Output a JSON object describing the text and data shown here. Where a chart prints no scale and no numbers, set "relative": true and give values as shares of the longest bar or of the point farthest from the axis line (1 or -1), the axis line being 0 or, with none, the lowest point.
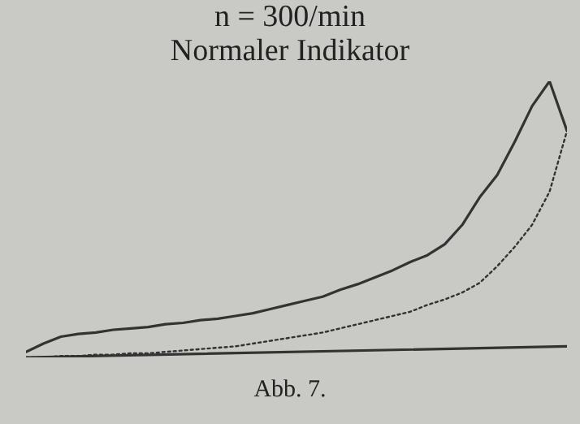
{
  "chart_data": {
    "type": "line",
    "title": "n = 300/min",
    "subtitle": "Normaler Indikator",
    "annotations": [
      "Abb. 7."
    ],
    "relative": true,
    "legend": false,
    "grid": false,
    "marker": "none",
    "categories": [
      null,
      null,
      null,
      null,
      null,
      null,
      null,
      null,
      null,
      null,
      null,
      null,
      null,
      null,
      null,
      null,
      null,
      null,
      null,
      null,
      null,
      null,
      null,
      null,
      null,
      null,
      null,
      null,
      null,
      null,
      null,
      null
    ],
    "series": [
      {
        "color": "#333333",
        "line_style": "solid",
        "values": [
          0.02,
          0.05,
          0.075,
          0.085,
          0.09,
          0.1,
          0.105,
          0.11,
          0.12,
          0.125,
          0.135,
          0.14,
          0.15,
          0.16,
          0.175,
          0.19,
          0.205,
          0.22,
          0.245,
          0.265,
          0.29,
          0.315,
          0.345,
          0.37,
          0.41,
          0.48,
          0.58,
          0.66,
          0.78,
          0.91,
          1.0,
          0.82
        ]
      },
      {
        "color": "#333333",
        "line_style": "dotted",
        "values": [
          0,
          0,
          0.005,
          0.005,
          0.01,
          0.01,
          0.015,
          0.015,
          0.02,
          0.025,
          0.03,
          0.035,
          0.04,
          0.05,
          0.06,
          0.07,
          0.08,
          0.09,
          0.105,
          0.12,
          0.135,
          0.15,
          0.165,
          0.19,
          0.21,
          0.235,
          0.27,
          0.33,
          0.4,
          0.48,
          0.6,
          0.82
        ]
      },
      {
        "color": "#333333",
        "line_style": "solid",
        "values": [
          0,
          null,
          null,
          null,
          null,
          null,
          null,
          null,
          null,
          null,
          null,
          null,
          null,
          null,
          null,
          null,
          null,
          null,
          null,
          null,
          null,
          null,
          null,
          null,
          null,
          null,
          null,
          null,
          null,
          null,
          null,
          0.04
        ]
      }
    ]
  }
}
